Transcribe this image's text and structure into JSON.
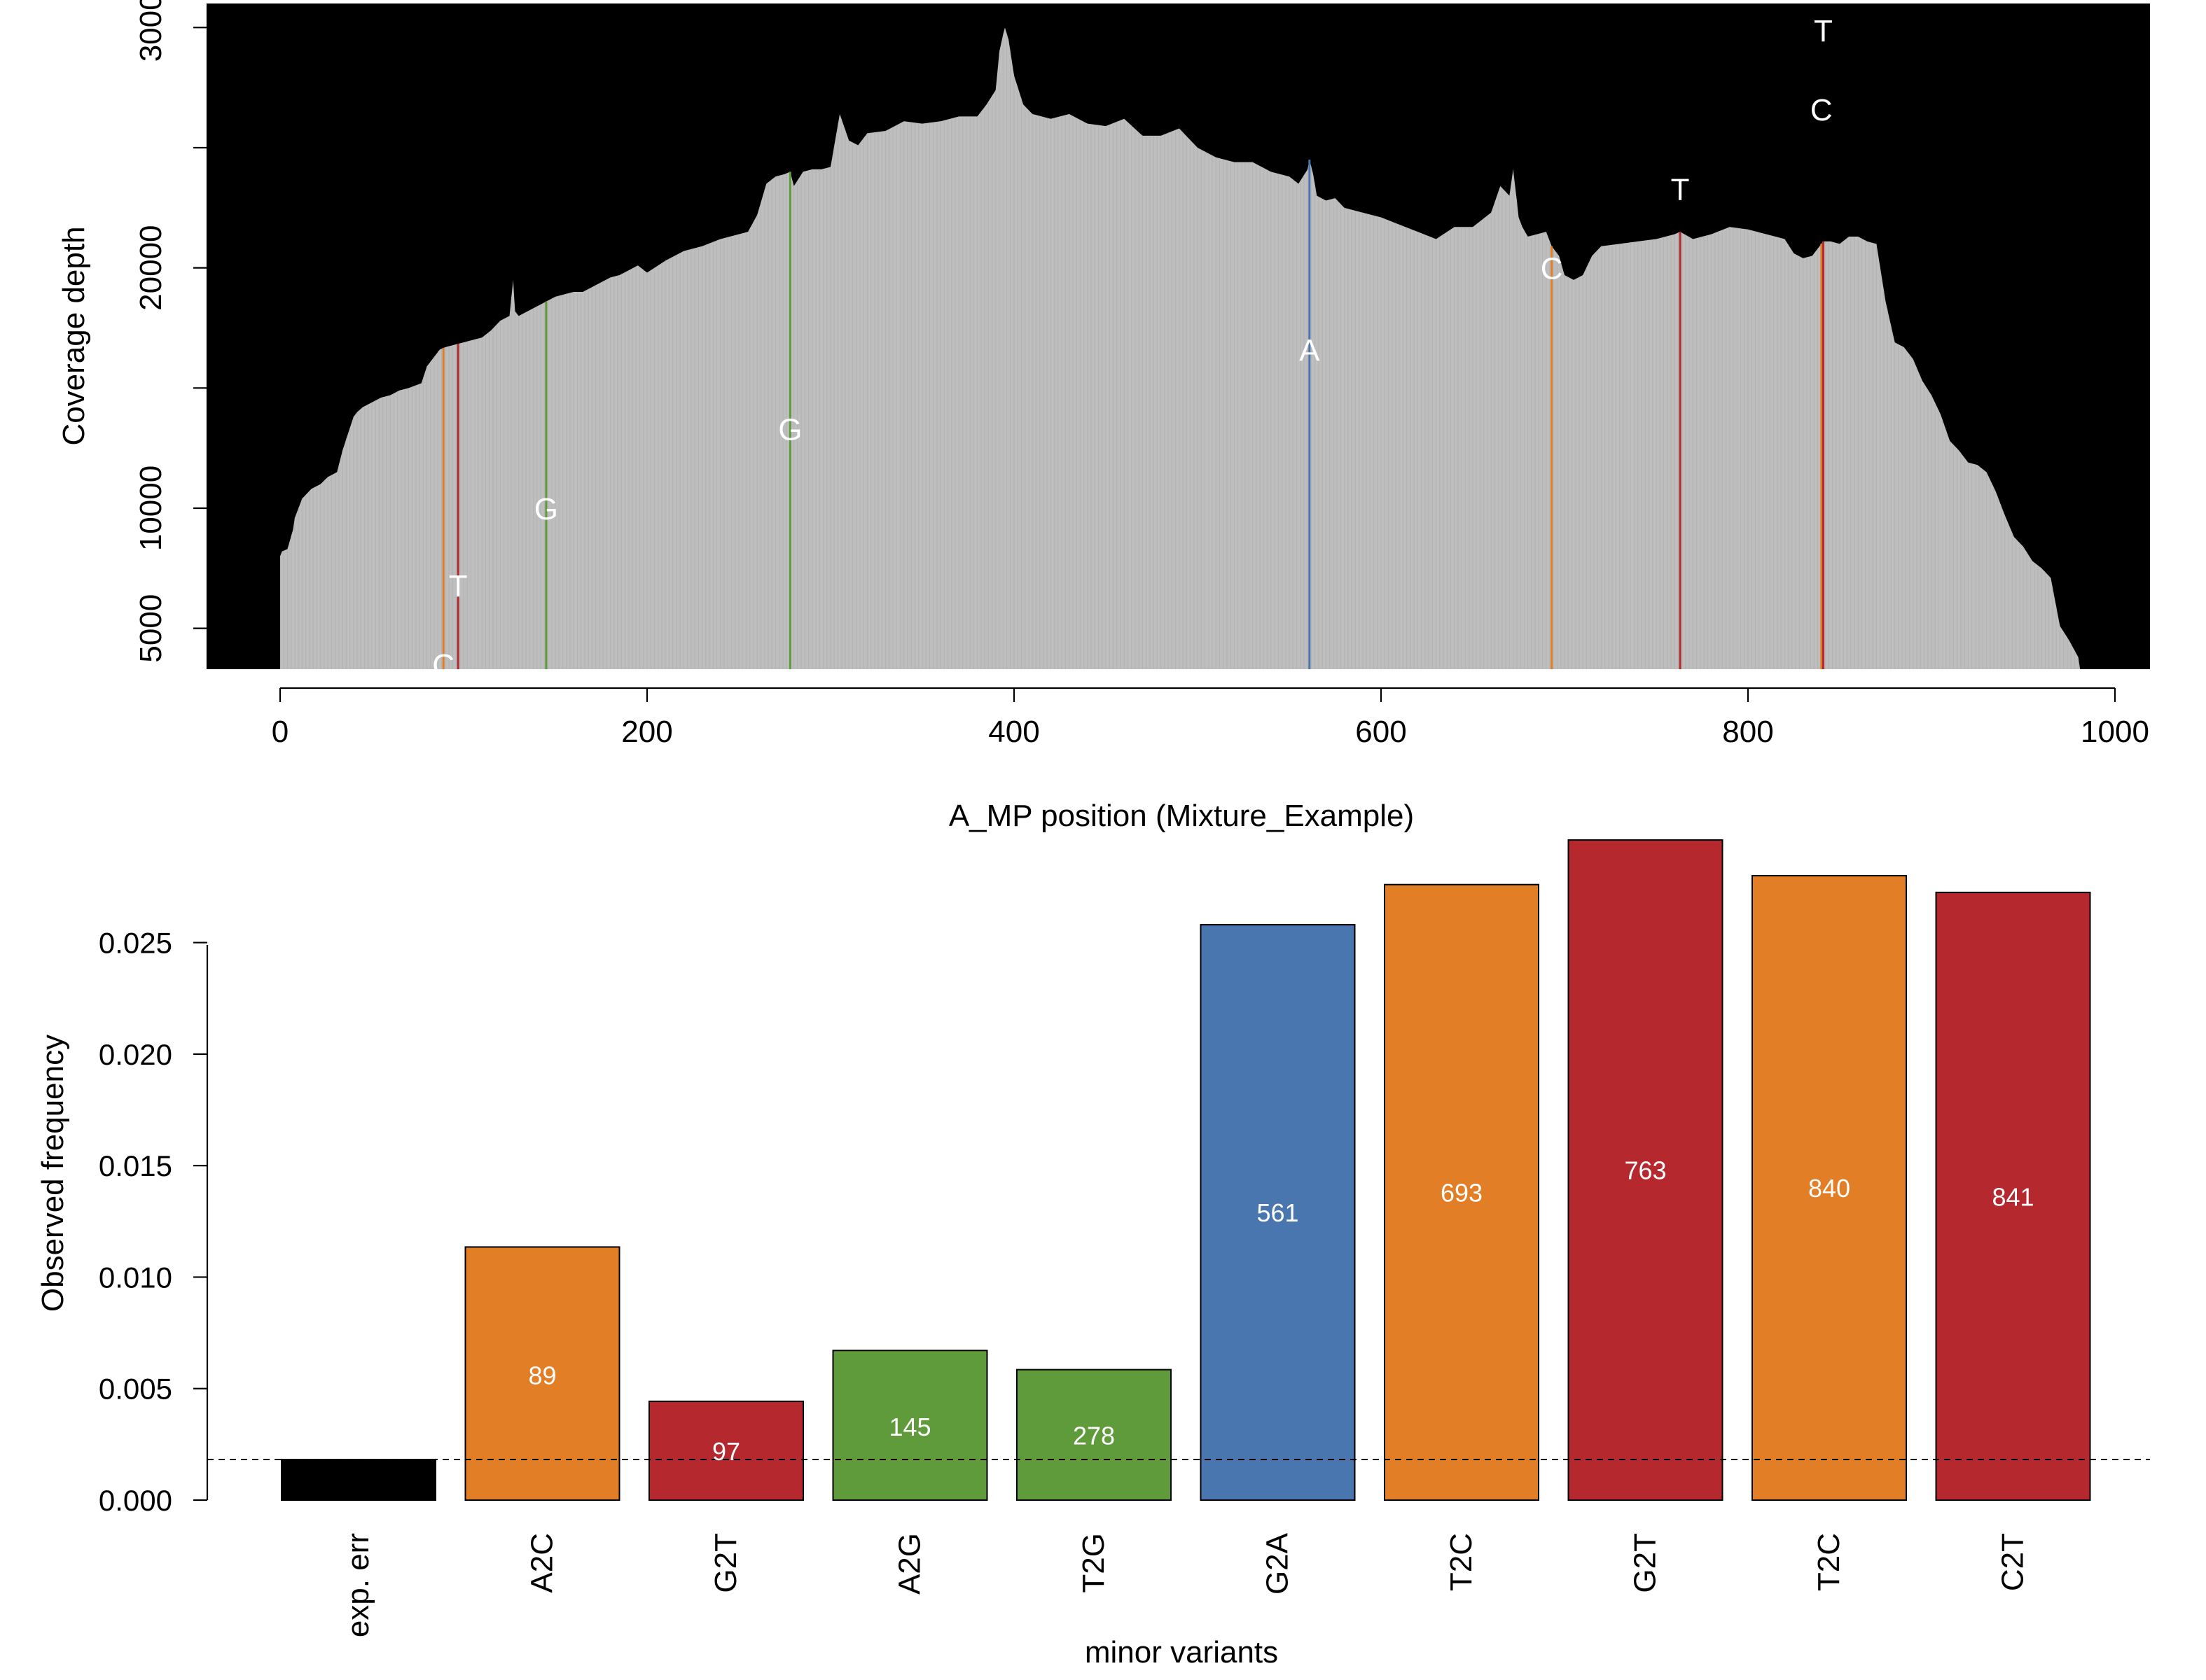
{
  "chart_data": [
    {
      "type": "area",
      "title": "",
      "xlabel": "A_MP position (Mixture_Example)",
      "ylabel": "Coverage depth",
      "xlim": [
        -20,
        1020
      ],
      "ylim": [
        3300,
        31000
      ],
      "x_ticks": [
        "0",
        "200",
        "400",
        "600",
        "800",
        "1000"
      ],
      "y_ticks": [
        "5000",
        "10000",
        "20000",
        "3000"
      ],
      "background": "#000000",
      "fill_color": "#bebebe",
      "profile_x": [
        0,
        1,
        4,
        7,
        8,
        12,
        17,
        22,
        26,
        31,
        34,
        37,
        40,
        42,
        45,
        50,
        55,
        60,
        65,
        70,
        77,
        80,
        84,
        87,
        90,
        95,
        100,
        105,
        110,
        115,
        120,
        125,
        127,
        128,
        130,
        135,
        140,
        145,
        150,
        155,
        160,
        165,
        170,
        175,
        180,
        185,
        190,
        195,
        200,
        210,
        220,
        230,
        240,
        250,
        255,
        260,
        265,
        270,
        275,
        278,
        280,
        285,
        290,
        295,
        300,
        305,
        310,
        315,
        320,
        330,
        340,
        350,
        360,
        370,
        380,
        385,
        390,
        392,
        394,
        395,
        397,
        400,
        405,
        410,
        420,
        430,
        440,
        450,
        460,
        470,
        480,
        490,
        500,
        510,
        520,
        530,
        540,
        550,
        555,
        560,
        561,
        563,
        565,
        570,
        575,
        580,
        590,
        600,
        610,
        620,
        630,
        640,
        650,
        660,
        665,
        670,
        672,
        674,
        675,
        677,
        680,
        685,
        690,
        693,
        697,
        700,
        705,
        710,
        715,
        720,
        730,
        740,
        750,
        760,
        763,
        770,
        780,
        790,
        800,
        810,
        820,
        825,
        830,
        835,
        840,
        841,
        845,
        850,
        855,
        860,
        865,
        870,
        875,
        880,
        885,
        890,
        895,
        900,
        905,
        910,
        915,
        920,
        925,
        930,
        935,
        940,
        945,
        950,
        955,
        960,
        965,
        970,
        975,
        980,
        981,
        982
      ],
      "profile_y": [
        8000,
        8200,
        8300,
        9100,
        9600,
        10400,
        10800,
        11000,
        11300,
        11500,
        12400,
        13100,
        13800,
        14000,
        14200,
        14400,
        14600,
        14700,
        14900,
        15000,
        15200,
        15900,
        16300,
        16600,
        16700,
        16800,
        16900,
        17000,
        17100,
        17400,
        17800,
        18000,
        19500,
        18200,
        18000,
        18200,
        18400,
        18600,
        18800,
        18900,
        19000,
        19000,
        19200,
        19400,
        19600,
        19700,
        19900,
        20100,
        19800,
        20300,
        20700,
        20900,
        21200,
        21400,
        21500,
        22200,
        23500,
        23800,
        23900,
        24000,
        23400,
        24000,
        24100,
        24100,
        24200,
        26400,
        25300,
        25100,
        25600,
        25700,
        26100,
        26000,
        26100,
        26300,
        26300,
        26800,
        27400,
        29000,
        29700,
        30000,
        29500,
        28000,
        26800,
        26400,
        26200,
        26400,
        26000,
        25900,
        26200,
        25500,
        25500,
        25800,
        25000,
        24600,
        24400,
        24400,
        24000,
        23800,
        23500,
        24100,
        24500,
        23900,
        23000,
        22800,
        22900,
        22500,
        22300,
        22100,
        21800,
        21500,
        21200,
        21700,
        21700,
        22300,
        23400,
        23000,
        24100,
        22800,
        22100,
        21700,
        21300,
        21400,
        21500,
        20900,
        20500,
        19700,
        19500,
        19700,
        20500,
        20900,
        21000,
        21100,
        21200,
        21400,
        21500,
        21200,
        21400,
        21700,
        21600,
        21400,
        21200,
        20600,
        20400,
        20500,
        21000,
        21100,
        21100,
        21000,
        21300,
        21300,
        21100,
        21000,
        18600,
        16900,
        16700,
        16200,
        15300,
        14700,
        13900,
        12800,
        12400,
        11900,
        11800,
        11500,
        10700,
        9700,
        8800,
        8400,
        7800,
        7500,
        7100,
        5100,
        4500,
        3800,
        3300
      ]
    },
    {
      "type": "bar",
      "title": "",
      "xlabel": "minor variants",
      "ylabel": "Observed frequency",
      "ylim": [
        0,
        0.0296
      ],
      "y_ticks": [
        "0.000",
        "0.005",
        "0.010",
        "0.015",
        "0.020",
        "0.025"
      ],
      "categories": [
        "exp. err",
        "A2C",
        "G2T",
        "A2G",
        "T2G",
        "G2A",
        "T2C",
        "G2T",
        "T2C",
        "C2T"
      ],
      "values": [
        0.00182,
        0.01135,
        0.00443,
        0.00671,
        0.00585,
        0.0258,
        0.0276,
        0.0296,
        0.028,
        0.02725
      ],
      "position_labels": [
        "",
        "89",
        "97",
        "145",
        "278",
        "561",
        "693",
        "763",
        "840",
        "841"
      ],
      "label_values": [
        0,
        0.0056,
        0.0022,
        0.0033,
        0.0029,
        0.0129,
        0.0138,
        0.0148,
        0.014,
        0.0136
      ],
      "colors": [
        "#000000",
        "#e27e25",
        "#b4282e",
        "#5f9b3a",
        "#5f9b3a",
        "#4a76b0",
        "#e27e25",
        "#b4282e",
        "#e27e25",
        "#b4282e"
      ],
      "threshold_line": 0.00182,
      "variants": [
        {
          "position": 89,
          "base": "C",
          "depth": 3500,
          "color": "#e27e25"
        },
        {
          "position": 97,
          "base": "T",
          "depth": 6800,
          "color": "#b4282e"
        },
        {
          "position": 145,
          "base": "G",
          "depth": 10000,
          "color": "#5f9b3a"
        },
        {
          "position": 278,
          "base": "G",
          "depth": 13300,
          "color": "#5f9b3a"
        },
        {
          "position": 561,
          "base": "A",
          "depth": 16600,
          "color": "#4a76b0"
        },
        {
          "position": 693,
          "base": "C",
          "depth": 20000,
          "color": "#e27e25"
        },
        {
          "position": 763,
          "base": "T",
          "depth": 23300,
          "color": "#b4282e"
        },
        {
          "position": 840,
          "base": "C",
          "depth": 26600,
          "color": "#e27e25"
        },
        {
          "position": 841,
          "base": "T",
          "depth": 29900,
          "color": "#b4282e"
        }
      ]
    }
  ]
}
